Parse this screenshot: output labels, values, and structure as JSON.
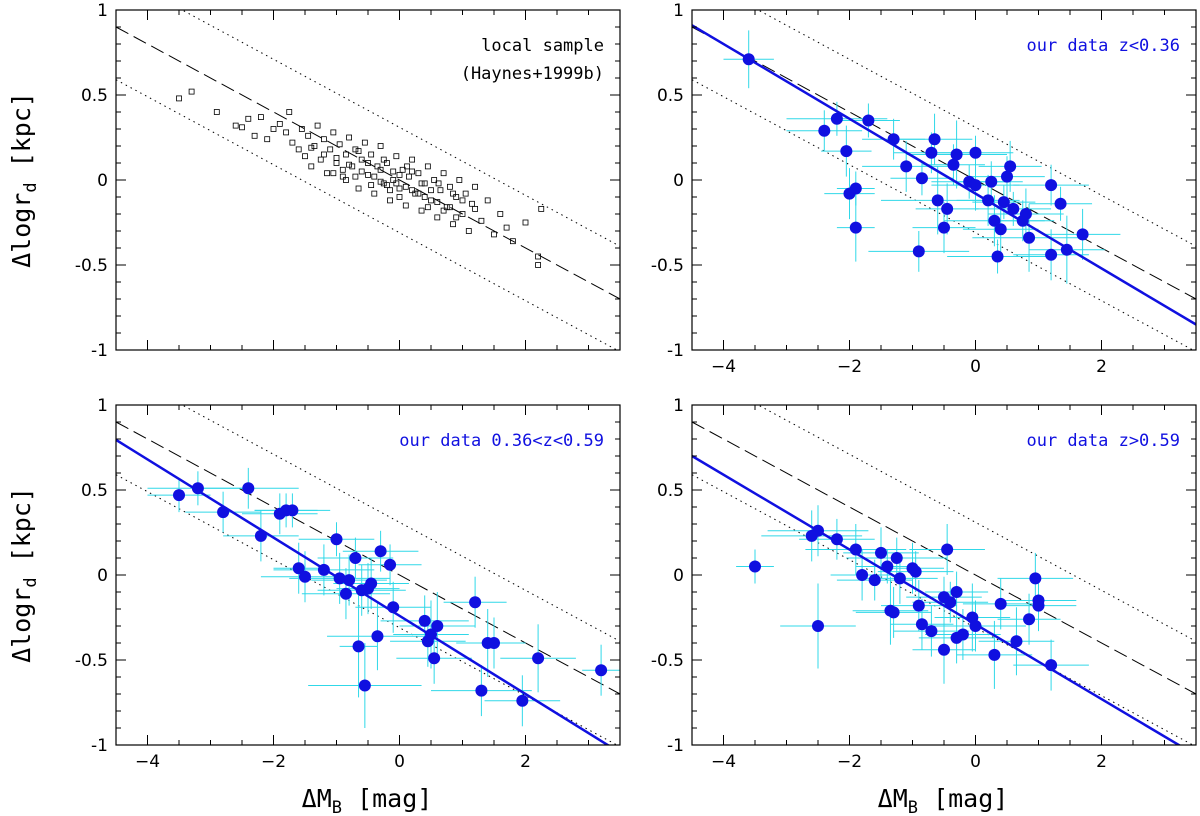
{
  "colors": {
    "frame": "#000000",
    "points": "#1010e0",
    "errorbars": "#30d8e8",
    "fit": "#1010e0",
    "local_points": "#000000"
  },
  "axes": {
    "x_label": "ΔM",
    "x_sub": "B",
    "x_unit": " [mag]",
    "y_label": "Δlogr",
    "y_sub": "d",
    "y_unit": " [kpc]"
  },
  "chart_data": [
    {
      "type": "scatter",
      "panel": "top-left",
      "annotation": [
        "local sample",
        "(Haynes+1999b)"
      ],
      "annotation_color": "#000000",
      "marker": "open-square",
      "xlim": [
        -4.5,
        3.5
      ],
      "ylim": [
        -1,
        1
      ],
      "xticks": [
        -4,
        -2,
        0,
        2
      ],
      "yticks": [
        -1,
        -0.5,
        0,
        0.5,
        1
      ],
      "xtick_labels_shown": false,
      "reference_line": {
        "style": "dashed",
        "slope": -0.2,
        "intercept": 0.0
      },
      "scatter_lines": [
        {
          "style": "dotted",
          "slope": -0.2,
          "intercept": 0.31
        },
        {
          "style": "dotted",
          "slope": -0.2,
          "intercept": -0.31
        }
      ],
      "fit_line": null,
      "points": [
        [
          -3.5,
          0.48
        ],
        [
          -3.3,
          0.52
        ],
        [
          -2.9,
          0.4
        ],
        [
          -2.6,
          0.32
        ],
        [
          -2.5,
          0.31
        ],
        [
          -2.4,
          0.36
        ],
        [
          -2.3,
          0.26
        ],
        [
          -2.2,
          0.37
        ],
        [
          -2.1,
          0.24
        ],
        [
          -2.0,
          0.3
        ],
        [
          -1.9,
          0.33
        ],
        [
          -1.8,
          0.28
        ],
        [
          -1.75,
          0.4
        ],
        [
          -1.7,
          0.22
        ],
        [
          -1.6,
          0.18
        ],
        [
          -1.55,
          0.3
        ],
        [
          -1.5,
          0.14
        ],
        [
          -1.45,
          0.26
        ],
        [
          -1.4,
          0.08
        ],
        [
          -1.35,
          0.2
        ],
        [
          -1.3,
          0.32
        ],
        [
          -1.25,
          0.12
        ],
        [
          -1.2,
          0.24
        ],
        [
          -1.15,
          0.04
        ],
        [
          -1.1,
          0.18
        ],
        [
          -1.05,
          0.28
        ],
        [
          -1.0,
          0.1
        ],
        [
          -0.95,
          0.21
        ],
        [
          -0.9,
          0.02
        ],
        [
          -0.85,
          0.15
        ],
        [
          -0.8,
          0.25
        ],
        [
          -0.75,
          0.08
        ],
        [
          -0.7,
          0.18
        ],
        [
          -0.65,
          -0.05
        ],
        [
          -0.6,
          0.12
        ],
        [
          -0.55,
          0.22
        ],
        [
          -0.5,
          0.03
        ],
        [
          -0.45,
          0.15
        ],
        [
          -0.4,
          -0.08
        ],
        [
          -0.35,
          0.08
        ],
        [
          -0.3,
          0.2
        ],
        [
          -0.25,
          -0.02
        ],
        [
          -0.2,
          0.1
        ],
        [
          -0.15,
          -0.12
        ],
        [
          -0.1,
          0.05
        ],
        [
          -0.05,
          0.14
        ],
        [
          0.0,
          -0.05
        ],
        [
          0.05,
          0.06
        ],
        [
          0.1,
          -0.15
        ],
        [
          0.15,
          0.02
        ],
        [
          0.2,
          0.12
        ],
        [
          0.25,
          -0.08
        ],
        [
          0.3,
          0.04
        ],
        [
          0.35,
          -0.18
        ],
        [
          0.4,
          -0.02
        ],
        [
          0.45,
          0.08
        ],
        [
          0.5,
          -0.12
        ],
        [
          0.55,
          0.0
        ],
        [
          0.6,
          -0.22
        ],
        [
          0.65,
          -0.06
        ],
        [
          0.7,
          0.04
        ],
        [
          0.75,
          -0.16
        ],
        [
          0.8,
          -0.04
        ],
        [
          0.85,
          -0.26
        ],
        [
          0.9,
          -0.1
        ],
        [
          0.95,
          0.0
        ],
        [
          1.0,
          -0.2
        ],
        [
          1.05,
          -0.08
        ],
        [
          1.1,
          -0.3
        ],
        [
          1.15,
          -0.14
        ],
        [
          1.2,
          -0.04
        ],
        [
          1.3,
          -0.24
        ],
        [
          1.4,
          -0.12
        ],
        [
          1.5,
          -0.32
        ],
        [
          1.6,
          -0.2
        ],
        [
          1.7,
          -0.28
        ],
        [
          1.8,
          -0.36
        ],
        [
          2.0,
          -0.25
        ],
        [
          2.2,
          -0.45
        ],
        [
          2.25,
          -0.17
        ],
        [
          -0.6,
          0.05
        ],
        [
          -0.4,
          0.02
        ],
        [
          -0.2,
          -0.03
        ],
        [
          0.0,
          0.03
        ],
        [
          0.2,
          -0.06
        ],
        [
          0.4,
          -0.1
        ],
        [
          -0.8,
          0.09
        ],
        [
          -1.0,
          0.13
        ],
        [
          0.6,
          -0.13
        ],
        [
          0.8,
          -0.16
        ],
        [
          -0.5,
          0.1
        ],
        [
          -0.3,
          -0.01
        ],
        [
          -0.1,
          0.0
        ],
        [
          0.1,
          -0.04
        ],
        [
          0.3,
          -0.08
        ],
        [
          0.5,
          -0.06
        ],
        [
          -0.7,
          0.02
        ],
        [
          -0.9,
          0.06
        ],
        [
          0.7,
          -0.18
        ],
        [
          0.9,
          -0.22
        ],
        [
          -1.2,
          0.15
        ],
        [
          -1.4,
          0.19
        ],
        [
          1.0,
          -0.12
        ],
        [
          1.2,
          -0.17
        ],
        [
          -0.3,
          0.06
        ],
        [
          0.0,
          -0.1
        ],
        [
          0.2,
          0.05
        ],
        [
          -0.15,
          -0.06
        ],
        [
          0.35,
          -0.02
        ],
        [
          -0.45,
          -0.03
        ],
        [
          2.2,
          -0.5
        ],
        [
          -0.05,
          -0.02
        ],
        [
          0.12,
          0.08
        ],
        [
          -0.25,
          0.12
        ],
        [
          0.45,
          -0.16
        ],
        [
          -0.65,
          0.17
        ],
        [
          0.62,
          -0.02
        ],
        [
          -0.85,
          0.0
        ],
        [
          0.85,
          -0.08
        ],
        [
          -1.05,
          0.04
        ]
      ]
    },
    {
      "type": "scatter",
      "panel": "top-right",
      "annotation": [
        "our data z<0.36"
      ],
      "annotation_color": "#1010e0",
      "marker": "filled-circle",
      "xlim": [
        -4.5,
        3.5
      ],
      "ylim": [
        -1,
        1
      ],
      "xticks": [
        -4,
        -2,
        0,
        2
      ],
      "yticks": [
        -1,
        -0.5,
        0,
        0.5,
        1
      ],
      "xtick_labels_shown": true,
      "reference_line": {
        "style": "dashed",
        "slope": -0.2,
        "intercept": 0.0
      },
      "scatter_lines": [
        {
          "style": "dotted",
          "slope": -0.2,
          "intercept": 0.31
        },
        {
          "style": "dotted",
          "slope": -0.2,
          "intercept": -0.31
        }
      ],
      "fit_line": {
        "style": "solid",
        "slope": -0.22,
        "intercept": -0.08
      },
      "points": [
        [
          -3.6,
          0.71,
          0.4,
          0.17
        ],
        [
          -2.4,
          0.29,
          0.6,
          0.12
        ],
        [
          -2.2,
          0.36,
          0.8,
          0.1
        ],
        [
          -2.05,
          0.17,
          0.4,
          0.15
        ],
        [
          -2.0,
          -0.08,
          0.4,
          0.15
        ],
        [
          -1.9,
          -0.28,
          0.3,
          0.2
        ],
        [
          -1.9,
          -0.05,
          0.3,
          0.1
        ],
        [
          -1.7,
          0.35,
          0.5,
          0.1
        ],
        [
          -1.3,
          0.24,
          0.5,
          0.12
        ],
        [
          -1.1,
          0.08,
          0.7,
          0.15
        ],
        [
          -0.9,
          -0.42,
          0.8,
          0.12
        ],
        [
          -0.85,
          0.01,
          0.5,
          0.1
        ],
        [
          -0.7,
          0.16,
          0.6,
          0.12
        ],
        [
          -0.65,
          0.24,
          0.6,
          0.15
        ],
        [
          -0.6,
          -0.12,
          0.9,
          0.2
        ],
        [
          -0.5,
          -0.28,
          0.5,
          0.15
        ],
        [
          -0.45,
          -0.17,
          0.5,
          0.15
        ],
        [
          -0.35,
          0.09,
          0.5,
          0.12
        ],
        [
          -0.3,
          0.15,
          0.8,
          0.2
        ],
        [
          -0.1,
          -0.01,
          0.6,
          0.1
        ],
        [
          0.0,
          -0.03,
          0.7,
          0.15
        ],
        [
          0.0,
          0.16,
          0.6,
          0.1
        ],
        [
          0.2,
          -0.12,
          0.5,
          0.15
        ],
        [
          0.25,
          -0.01,
          0.5,
          0.12
        ],
        [
          0.3,
          -0.24,
          0.8,
          0.15
        ],
        [
          0.35,
          -0.45,
          0.8,
          0.1
        ],
        [
          0.4,
          -0.29,
          0.6,
          0.15
        ],
        [
          0.45,
          -0.13,
          0.5,
          0.1
        ],
        [
          0.5,
          0.02,
          0.6,
          0.12
        ],
        [
          0.55,
          0.08,
          0.5,
          0.15
        ],
        [
          0.6,
          -0.17,
          0.6,
          0.1
        ],
        [
          0.75,
          -0.24,
          0.5,
          0.12
        ],
        [
          0.8,
          -0.2,
          0.6,
          0.15
        ],
        [
          0.85,
          -0.34,
          0.9,
          0.2
        ],
        [
          1.2,
          -0.03,
          0.6,
          0.12
        ],
        [
          1.2,
          -0.44,
          0.6,
          0.15
        ],
        [
          1.35,
          -0.14,
          0.5,
          0.1
        ],
        [
          1.45,
          -0.41,
          0.6,
          0.2
        ],
        [
          1.7,
          -0.32,
          0.6,
          0.15
        ]
      ]
    },
    {
      "type": "scatter",
      "panel": "bottom-left",
      "annotation": [
        "our data 0.36<z<0.59"
      ],
      "annotation_color": "#1010e0",
      "marker": "filled-circle",
      "xlim": [
        -4.5,
        3.5
      ],
      "ylim": [
        -1,
        1
      ],
      "xticks": [
        -4,
        -2,
        0,
        2
      ],
      "yticks": [
        -1,
        -0.5,
        0,
        0.5,
        1
      ],
      "xtick_labels_shown": true,
      "reference_line": {
        "style": "dashed",
        "slope": -0.2,
        "intercept": 0.0
      },
      "scatter_lines": [
        {
          "style": "dotted",
          "slope": -0.2,
          "intercept": 0.31
        },
        {
          "style": "dotted",
          "slope": -0.2,
          "intercept": -0.31
        }
      ],
      "fit_line": {
        "style": "solid",
        "slope": -0.23,
        "intercept": -0.24
      },
      "points": [
        [
          -3.5,
          0.47,
          0.5,
          0.1
        ],
        [
          -3.2,
          0.51,
          0.8,
          0.1
        ],
        [
          -2.8,
          0.37,
          0.6,
          0.12
        ],
        [
          -2.4,
          0.51,
          0.8,
          0.12
        ],
        [
          -2.2,
          0.23,
          0.6,
          0.15
        ],
        [
          -1.9,
          0.36,
          0.6,
          0.12
        ],
        [
          -1.8,
          0.38,
          0.5,
          0.1
        ],
        [
          -1.7,
          0.38,
          0.6,
          0.1
        ],
        [
          -1.6,
          0.04,
          0.4,
          0.15
        ],
        [
          -1.5,
          -0.01,
          0.7,
          0.15
        ],
        [
          -1.2,
          0.03,
          0.8,
          0.15
        ],
        [
          -1.0,
          0.21,
          0.6,
          0.1
        ],
        [
          -0.95,
          -0.02,
          0.8,
          0.15
        ],
        [
          -0.85,
          -0.11,
          0.7,
          0.15
        ],
        [
          -0.8,
          -0.03,
          0.6,
          0.15
        ],
        [
          -0.7,
          0.1,
          0.6,
          0.12
        ],
        [
          -0.65,
          -0.42,
          0.3,
          0.3
        ],
        [
          -0.6,
          -0.09,
          0.7,
          0.15
        ],
        [
          -0.55,
          -0.65,
          0.9,
          0.25
        ],
        [
          -0.5,
          -0.08,
          0.5,
          0.15
        ],
        [
          -0.45,
          -0.05,
          0.6,
          0.15
        ],
        [
          -0.35,
          -0.36,
          0.8,
          0.2
        ],
        [
          -0.3,
          0.14,
          0.6,
          0.12
        ],
        [
          -0.15,
          0.06,
          0.5,
          0.12
        ],
        [
          -0.1,
          -0.19,
          0.6,
          0.15
        ],
        [
          0.4,
          -0.27,
          0.7,
          0.15
        ],
        [
          0.45,
          -0.39,
          0.6,
          0.15
        ],
        [
          0.5,
          -0.35,
          0.6,
          0.2
        ],
        [
          0.55,
          -0.49,
          0.6,
          0.15
        ],
        [
          0.6,
          -0.3,
          0.6,
          0.2
        ],
        [
          1.2,
          -0.16,
          0.5,
          0.15
        ],
        [
          1.3,
          -0.68,
          0.8,
          0.15
        ],
        [
          1.4,
          -0.4,
          0.5,
          0.2
        ],
        [
          1.5,
          -0.4,
          0.5,
          0.15
        ],
        [
          1.95,
          -0.74,
          0.6,
          0.15
        ],
        [
          2.2,
          -0.49,
          0.6,
          0.2
        ],
        [
          3.2,
          -0.56,
          0.3,
          0.15
        ]
      ]
    },
    {
      "type": "scatter",
      "panel": "bottom-right",
      "annotation": [
        "our data z>0.59"
      ],
      "annotation_color": "#1010e0",
      "marker": "filled-circle",
      "xlim": [
        -4.5,
        3.5
      ],
      "ylim": [
        -1,
        1
      ],
      "xticks": [
        -4,
        -2,
        0,
        2
      ],
      "yticks": [
        -1,
        -0.5,
        0,
        0.5,
        1
      ],
      "xtick_labels_shown": true,
      "reference_line": {
        "style": "dashed",
        "slope": -0.2,
        "intercept": 0.0
      },
      "scatter_lines": [
        {
          "style": "dotted",
          "slope": -0.2,
          "intercept": 0.31
        },
        {
          "style": "dotted",
          "slope": -0.2,
          "intercept": -0.31
        }
      ],
      "fit_line": {
        "style": "solid",
        "slope": -0.22,
        "intercept": -0.29
      },
      "points": [
        [
          -3.5,
          0.05,
          0.3,
          0.1
        ],
        [
          -2.6,
          0.23,
          0.8,
          0.15
        ],
        [
          -2.5,
          0.26,
          0.8,
          0.15
        ],
        [
          -2.5,
          -0.3,
          0.6,
          0.25
        ],
        [
          -2.2,
          0.21,
          0.6,
          0.12
        ],
        [
          -1.9,
          0.15,
          0.8,
          0.15
        ],
        [
          -1.8,
          0.0,
          0.5,
          0.15
        ],
        [
          -1.6,
          -0.03,
          0.6,
          0.12
        ],
        [
          -1.5,
          0.13,
          0.6,
          0.15
        ],
        [
          -1.4,
          0.05,
          0.5,
          0.1
        ],
        [
          -1.35,
          -0.21,
          0.6,
          0.2
        ],
        [
          -1.3,
          -0.22,
          0.6,
          0.15
        ],
        [
          -1.25,
          0.1,
          0.8,
          0.12
        ],
        [
          -1.2,
          -0.02,
          0.6,
          0.15
        ],
        [
          -1.0,
          0.04,
          0.5,
          0.15
        ],
        [
          -0.95,
          0.02,
          0.6,
          0.12
        ],
        [
          -0.9,
          -0.18,
          0.6,
          0.15
        ],
        [
          -0.85,
          -0.29,
          0.5,
          0.15
        ],
        [
          -0.7,
          -0.33,
          0.6,
          0.15
        ],
        [
          -0.5,
          -0.13,
          0.6,
          0.12
        ],
        [
          -0.5,
          -0.44,
          0.5,
          0.2
        ],
        [
          -0.45,
          0.15,
          0.6,
          0.15
        ],
        [
          -0.4,
          -0.16,
          0.6,
          0.12
        ],
        [
          -0.3,
          -0.37,
          0.6,
          0.15
        ],
        [
          -0.2,
          -0.35,
          0.6,
          0.15
        ],
        [
          -0.3,
          -0.1,
          0.5,
          0.12
        ],
        [
          -0.05,
          -0.25,
          0.6,
          0.2
        ],
        [
          0.0,
          -0.3,
          0.8,
          0.15
        ],
        [
          0.3,
          -0.47,
          0.6,
          0.2
        ],
        [
          0.4,
          -0.17,
          0.6,
          0.15
        ],
        [
          0.65,
          -0.39,
          0.6,
          0.2
        ],
        [
          0.85,
          -0.26,
          0.5,
          0.15
        ],
        [
          0.95,
          -0.02,
          0.6,
          0.15
        ],
        [
          1.0,
          -0.15,
          0.6,
          0.12
        ],
        [
          1.0,
          -0.18,
          0.6,
          0.15
        ],
        [
          1.2,
          -0.53,
          0.6,
          0.15
        ]
      ]
    }
  ]
}
